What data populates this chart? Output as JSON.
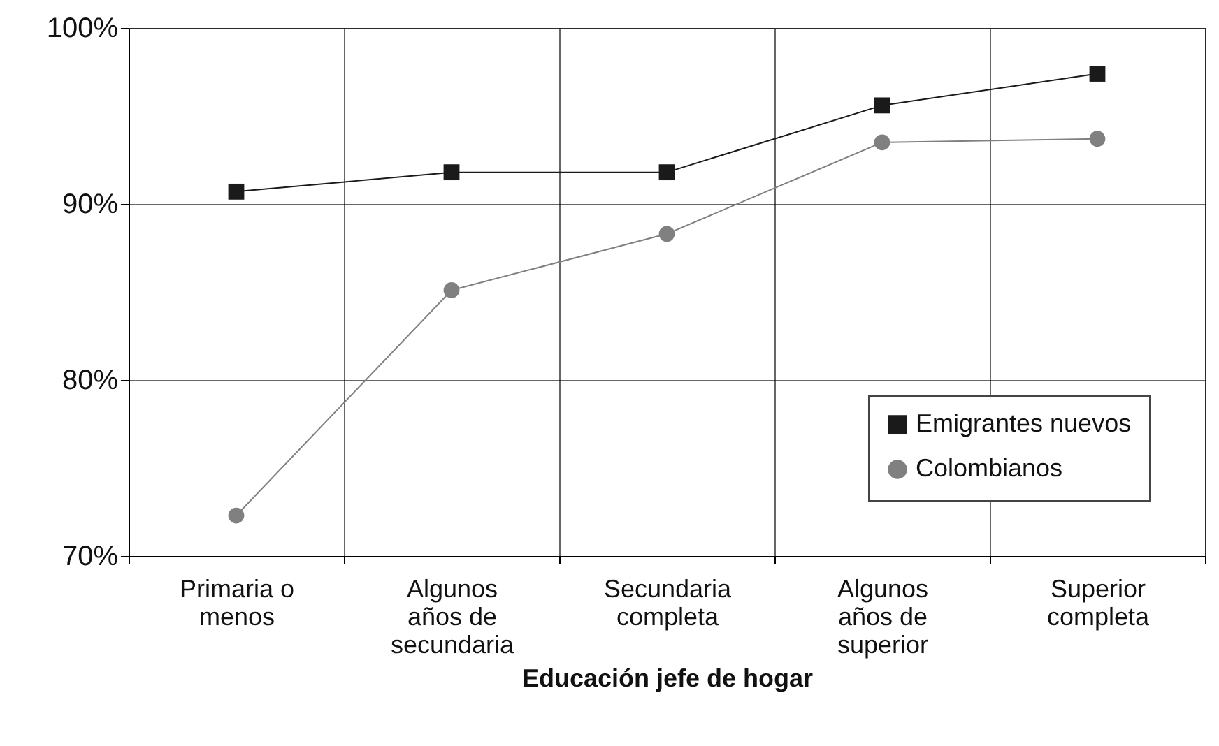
{
  "chart_data": {
    "type": "line",
    "xlabel": "Educación jefe de hogar",
    "categories": [
      "Primaria o menos",
      "Algunos años de secundaria",
      "Secundaria completa",
      "Algunos años de superior",
      "Superior completa"
    ],
    "series": [
      {
        "name": "Emigrantes nuevos",
        "color": "#1a1a1a",
        "marker": "square",
        "values": [
          90.7,
          91.8,
          91.8,
          95.6,
          97.4
        ]
      },
      {
        "name": "Colombianos",
        "color": "#808080",
        "marker": "circle",
        "values": [
          72.3,
          85.1,
          88.3,
          93.5,
          93.7
        ]
      }
    ],
    "ylim": [
      70,
      100
    ],
    "yticks": [
      {
        "value": 70,
        "label": "70%"
      },
      {
        "value": 80,
        "label": "80%"
      },
      {
        "value": 90,
        "label": "90%"
      },
      {
        "value": 100,
        "label": "100%"
      }
    ],
    "grid": true,
    "legend": "bottom right",
    "line_style": "solid"
  }
}
